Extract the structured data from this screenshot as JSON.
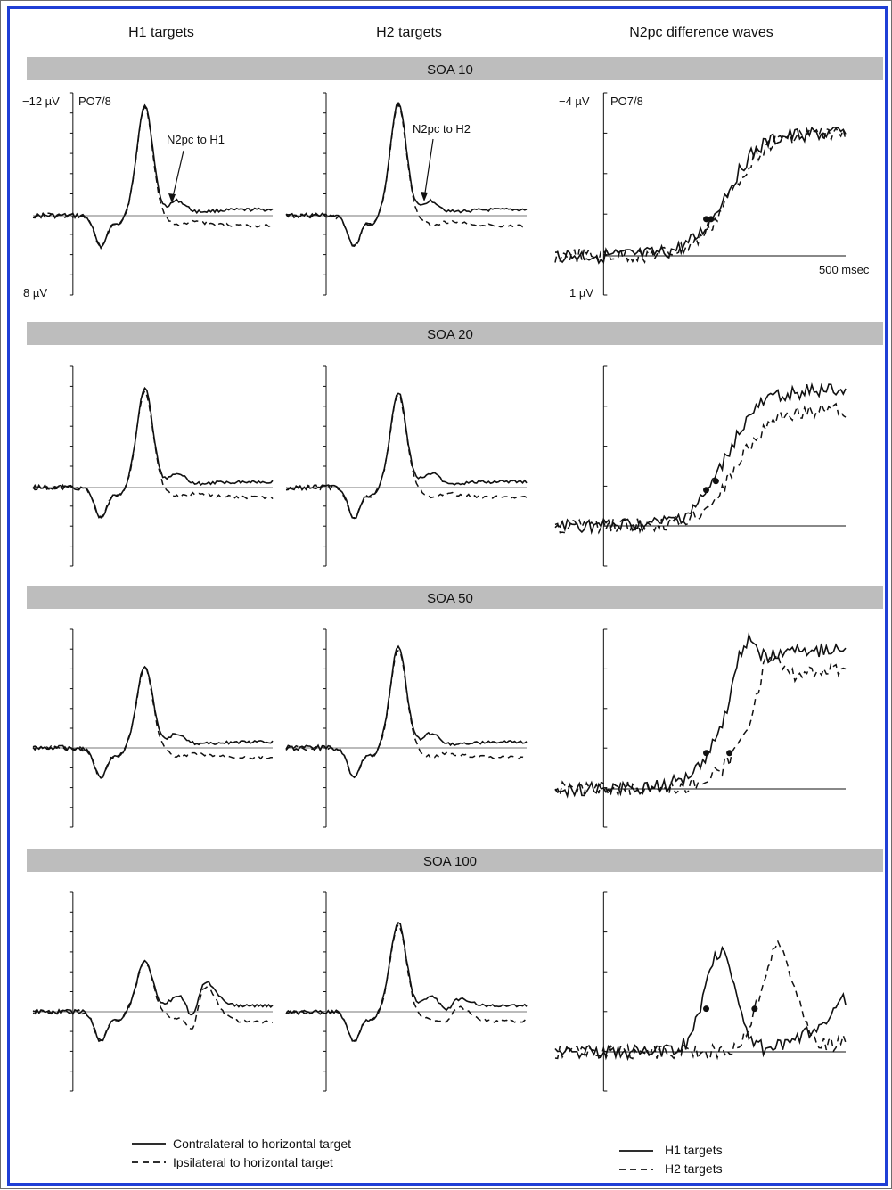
{
  "column_headers": [
    "H1 targets",
    "H2 targets",
    "N2pc difference waves"
  ],
  "rows": [
    {
      "label": "SOA 10"
    },
    {
      "label": "SOA 20"
    },
    {
      "label": "SOA 50"
    },
    {
      "label": "SOA 100"
    }
  ],
  "axis_text": {
    "erp_top": "−12 µV",
    "erp_bottom": "8 µV",
    "erp_channel": "PO7/8",
    "diff_top": "−4 µV",
    "diff_bottom": "1 µV",
    "diff_channel": "PO7/8",
    "time_label": "500 msec"
  },
  "annotations": {
    "h1": "N2pc to H1",
    "h2": "N2pc to H2"
  },
  "legends": {
    "erp": [
      "Contralateral to horizontal target",
      "Ipsilateral to horizontal target"
    ],
    "diff": [
      "H1 targets",
      "H2 targets"
    ]
  },
  "colors": {
    "border": "#1f3fd6",
    "band": "#bdbdbd",
    "trace": "#111111"
  },
  "chart_data": [
    {
      "type": "line",
      "panel": "ERP",
      "ylabel_top": "−12 µV",
      "ylabel_bottom": "8 µV",
      "ylim": [
        -12,
        8
      ],
      "xlim": [
        -100,
        500
      ],
      "channel": "PO7/8",
      "series": [
        {
          "name": "Contralateral to horizontal target"
        },
        {
          "name": "Ipsilateral to horizontal target"
        }
      ],
      "h1_peak_uV": {
        "SOA 10": -10.8,
        "SOA 20": -9.8,
        "SOA 50": -8.3,
        "SOA 100": -5.1
      },
      "h2_peak_uV": {
        "SOA 10": -11.0,
        "SOA 20": -9.4,
        "SOA 50": -10.2,
        "SOA 100": -8.9
      }
    },
    {
      "type": "line",
      "panel": "N2pc difference waves",
      "ylabel_top": "−4 µV",
      "ylabel_bottom": "1 µV",
      "ylim": [
        -4,
        1
      ],
      "xlim": [
        -100,
        500
      ],
      "channel": "PO7/8",
      "series": [
        {
          "name": "H1 targets",
          "onset_ms": {
            "SOA 10": 212,
            "SOA 20": 212,
            "SOA 50": 212,
            "SOA 100": 212
          }
        },
        {
          "name": "H2 targets",
          "onset_ms": {
            "SOA 10": 222,
            "SOA 20": 232,
            "SOA 50": 260,
            "SOA 100": 312
          }
        }
      ]
    }
  ]
}
